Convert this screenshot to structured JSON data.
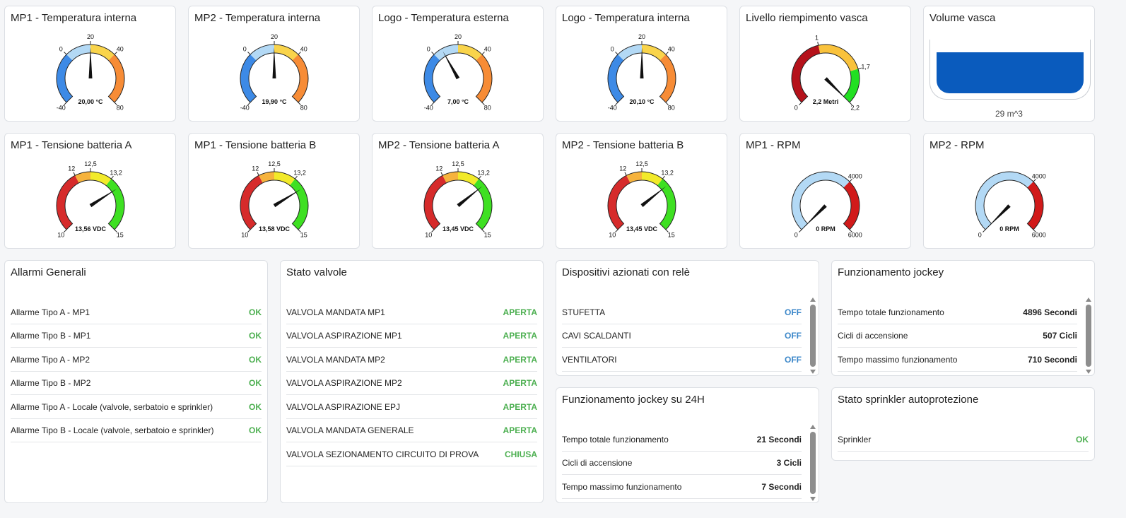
{
  "gauges": [
    {
      "title": "MP1 - Temperatura interna",
      "value": 20,
      "value_text": "20,00 °C",
      "min": -40,
      "max": 80,
      "ticks": [
        {
          "v": -40,
          "t": "-40"
        },
        {
          "v": 0,
          "t": "0"
        },
        {
          "v": 20,
          "t": "20"
        },
        {
          "v": 40,
          "t": "40"
        },
        {
          "v": 80,
          "t": "80"
        }
      ],
      "bands": [
        {
          "from": -40,
          "to": 0,
          "color": "#3d8ae6"
        },
        {
          "from": 0,
          "to": 20,
          "color": "#b3d9f5"
        },
        {
          "from": 20,
          "to": 40,
          "color": "#f9d44b"
        },
        {
          "from": 40,
          "to": 80,
          "color": "#f78c36"
        }
      ]
    },
    {
      "title": "MP2 - Temperatura interna",
      "value": 19.9,
      "value_text": "19,90 °C",
      "min": -40,
      "max": 80,
      "ticks": [
        {
          "v": -40,
          "t": "-40"
        },
        {
          "v": 0,
          "t": "0"
        },
        {
          "v": 20,
          "t": "20"
        },
        {
          "v": 40,
          "t": "40"
        },
        {
          "v": 80,
          "t": "80"
        }
      ],
      "bands": [
        {
          "from": -40,
          "to": 0,
          "color": "#3d8ae6"
        },
        {
          "from": 0,
          "to": 20,
          "color": "#b3d9f5"
        },
        {
          "from": 20,
          "to": 40,
          "color": "#f9d44b"
        },
        {
          "from": 40,
          "to": 80,
          "color": "#f78c36"
        }
      ]
    },
    {
      "title": "Logo - Temperatura esterna",
      "value": 7,
      "value_text": "7,00 °C",
      "min": -40,
      "max": 80,
      "ticks": [
        {
          "v": -40,
          "t": "-40"
        },
        {
          "v": 0,
          "t": "0"
        },
        {
          "v": 20,
          "t": "20"
        },
        {
          "v": 40,
          "t": "40"
        },
        {
          "v": 80,
          "t": "80"
        }
      ],
      "bands": [
        {
          "from": -40,
          "to": 0,
          "color": "#3d8ae6"
        },
        {
          "from": 0,
          "to": 20,
          "color": "#b3d9f5"
        },
        {
          "from": 20,
          "to": 40,
          "color": "#f9d44b"
        },
        {
          "from": 40,
          "to": 80,
          "color": "#f78c36"
        }
      ]
    },
    {
      "title": "Logo - Temperatura interna",
      "value": 20.1,
      "value_text": "20,10 °C",
      "min": -40,
      "max": 80,
      "ticks": [
        {
          "v": -40,
          "t": "-40"
        },
        {
          "v": 0,
          "t": "0"
        },
        {
          "v": 20,
          "t": "20"
        },
        {
          "v": 40,
          "t": "40"
        },
        {
          "v": 80,
          "t": "80"
        }
      ],
      "bands": [
        {
          "from": -40,
          "to": 0,
          "color": "#3d8ae6"
        },
        {
          "from": 0,
          "to": 20,
          "color": "#b3d9f5"
        },
        {
          "from": 20,
          "to": 40,
          "color": "#f9d44b"
        },
        {
          "from": 40,
          "to": 80,
          "color": "#f78c36"
        }
      ]
    },
    {
      "title": "Livello riempimento vasca",
      "value": 2.2,
      "value_text": "2,2 Metri",
      "min": 0,
      "max": 2.2,
      "ticks": [
        {
          "v": 0,
          "t": "0"
        },
        {
          "v": 1,
          "t": "1"
        },
        {
          "v": 1.7,
          "t": "1,7"
        },
        {
          "v": 2.2,
          "t": "2,2"
        }
      ],
      "bands": [
        {
          "from": 0,
          "to": 1,
          "color": "#b5121b"
        },
        {
          "from": 1,
          "to": 1.7,
          "color": "#f9c23c"
        },
        {
          "from": 1.7,
          "to": 2.2,
          "color": "#22e022"
        }
      ]
    },
    {
      "title": "MP1 - Tensione batteria A",
      "value": 13.56,
      "value_text": "13,56 VDC",
      "min": 10,
      "max": 15,
      "ticks": [
        {
          "v": 10,
          "t": "10"
        },
        {
          "v": 12,
          "t": "12"
        },
        {
          "v": 12.5,
          "t": "12,5"
        },
        {
          "v": 13.2,
          "t": "13,2"
        },
        {
          "v": 15,
          "t": "15"
        }
      ],
      "bands": [
        {
          "from": 10,
          "to": 12,
          "color": "#d62b2b"
        },
        {
          "from": 12,
          "to": 12.5,
          "color": "#f6b33d"
        },
        {
          "from": 12.5,
          "to": 13.2,
          "color": "#f2ea2a"
        },
        {
          "from": 13.2,
          "to": 15,
          "color": "#3ee022"
        }
      ]
    },
    {
      "title": "MP1 - Tensione batteria B",
      "value": 13.58,
      "value_text": "13,58 VDC",
      "min": 10,
      "max": 15,
      "ticks": [
        {
          "v": 10,
          "t": "10"
        },
        {
          "v": 12,
          "t": "12"
        },
        {
          "v": 12.5,
          "t": "12,5"
        },
        {
          "v": 13.2,
          "t": "13,2"
        },
        {
          "v": 15,
          "t": "15"
        }
      ],
      "bands": [
        {
          "from": 10,
          "to": 12,
          "color": "#d62b2b"
        },
        {
          "from": 12,
          "to": 12.5,
          "color": "#f6b33d"
        },
        {
          "from": 12.5,
          "to": 13.2,
          "color": "#f2ea2a"
        },
        {
          "from": 13.2,
          "to": 15,
          "color": "#3ee022"
        }
      ]
    },
    {
      "title": "MP2 - Tensione batteria A",
      "value": 13.45,
      "value_text": "13,45 VDC",
      "min": 10,
      "max": 15,
      "ticks": [
        {
          "v": 10,
          "t": "10"
        },
        {
          "v": 12,
          "t": "12"
        },
        {
          "v": 12.5,
          "t": "12,5"
        },
        {
          "v": 13.2,
          "t": "13,2"
        },
        {
          "v": 15,
          "t": "15"
        }
      ],
      "bands": [
        {
          "from": 10,
          "to": 12,
          "color": "#d62b2b"
        },
        {
          "from": 12,
          "to": 12.5,
          "color": "#f6b33d"
        },
        {
          "from": 12.5,
          "to": 13.2,
          "color": "#f2ea2a"
        },
        {
          "from": 13.2,
          "to": 15,
          "color": "#3ee022"
        }
      ]
    },
    {
      "title": "MP2 - Tensione batteria B",
      "value": 13.45,
      "value_text": "13,45 VDC",
      "min": 10,
      "max": 15,
      "ticks": [
        {
          "v": 10,
          "t": "10"
        },
        {
          "v": 12,
          "t": "12"
        },
        {
          "v": 12.5,
          "t": "12,5"
        },
        {
          "v": 13.2,
          "t": "13,2"
        },
        {
          "v": 15,
          "t": "15"
        }
      ],
      "bands": [
        {
          "from": 10,
          "to": 12,
          "color": "#d62b2b"
        },
        {
          "from": 12,
          "to": 12.5,
          "color": "#f6b33d"
        },
        {
          "from": 12.5,
          "to": 13.2,
          "color": "#f2ea2a"
        },
        {
          "from": 13.2,
          "to": 15,
          "color": "#3ee022"
        }
      ]
    },
    {
      "title": "MP1 - RPM",
      "value": 0,
      "value_text": "0 RPM",
      "min": 0,
      "max": 6000,
      "ticks": [
        {
          "v": 0,
          "t": "0"
        },
        {
          "v": 4000,
          "t": "4000"
        },
        {
          "v": 6000,
          "t": "6000"
        }
      ],
      "bands": [
        {
          "from": 0,
          "to": 4000,
          "color": "#b3d9f5"
        },
        {
          "from": 4000,
          "to": 6000,
          "color": "#d11a1a"
        }
      ]
    },
    {
      "title": "MP2 - RPM",
      "value": 0,
      "value_text": "0 RPM",
      "min": 0,
      "max": 6000,
      "ticks": [
        {
          "v": 0,
          "t": "0"
        },
        {
          "v": 4000,
          "t": "4000"
        },
        {
          "v": 6000,
          "t": "6000"
        }
      ],
      "bands": [
        {
          "from": 0,
          "to": 4000,
          "color": "#b3d9f5"
        },
        {
          "from": 4000,
          "to": 6000,
          "color": "#d11a1a"
        }
      ]
    }
  ],
  "tank": {
    "title": "Volume vasca",
    "caption": "29 m^3",
    "fill_fraction": 0.86,
    "water_color": "#0a5bbd"
  },
  "alarms": {
    "title": "Allarmi Generali",
    "rows": [
      {
        "label": "Allarme Tipo A - MP1",
        "value": "OK"
      },
      {
        "label": "Allarme Tipo B - MP1",
        "value": "OK"
      },
      {
        "label": "Allarme Tipo A - MP2",
        "value": "OK"
      },
      {
        "label": "Allarme Tipo B - MP2",
        "value": "OK"
      },
      {
        "label": "Allarme Tipo A - Locale (valvole, serbatoio e sprinkler)",
        "value": "OK"
      },
      {
        "label": "Allarme Tipo B - Locale (valvole, serbatoio e sprinkler)",
        "value": "OK"
      }
    ]
  },
  "valves": {
    "title": "Stato valvole",
    "rows": [
      {
        "label": "VALVOLA MANDATA MP1",
        "value": "APERTA"
      },
      {
        "label": "VALVOLA ASPIRAZIONE MP1",
        "value": "APERTA"
      },
      {
        "label": "VALVOLA MANDATA MP2",
        "value": "APERTA"
      },
      {
        "label": "VALVOLA ASPIRAZIONE MP2",
        "value": "APERTA"
      },
      {
        "label": "VALVOLA ASPIRAZIONE EPJ",
        "value": "APERTA"
      },
      {
        "label": "VALVOLA MANDATA GENERALE",
        "value": "APERTA"
      },
      {
        "label": "VALVOLA SEZIONAMENTO CIRCUITO DI PROVA",
        "value": "CHIUSA"
      }
    ]
  },
  "relays": {
    "title": "Dispositivi azionati con relè",
    "rows": [
      {
        "label": "STUFETTA",
        "value": "OFF"
      },
      {
        "label": "CAVI SCALDANTI",
        "value": "OFF"
      },
      {
        "label": "VENTILATORI",
        "value": "OFF"
      }
    ]
  },
  "jockey": {
    "title": "Funzionamento jockey",
    "rows": [
      {
        "label": "Tempo totale funzionamento",
        "value": "4896 Secondi"
      },
      {
        "label": "Cicli di accensione",
        "value": "507 Cicli"
      },
      {
        "label": "Tempo massimo funzionamento",
        "value": "710 Secondi"
      }
    ]
  },
  "jockey24": {
    "title": "Funzionamento jockey su 24H",
    "rows": [
      {
        "label": "Tempo totale funzionamento",
        "value": "21 Secondi"
      },
      {
        "label": "Cicli di accensione",
        "value": "3 Cicli"
      },
      {
        "label": "Tempo massimo funzionamento",
        "value": "7 Secondi"
      }
    ]
  },
  "sprinkler": {
    "title": "Stato sprinkler autoprotezione",
    "rows": [
      {
        "label": "Sprinkler",
        "value": "OK"
      }
    ]
  }
}
